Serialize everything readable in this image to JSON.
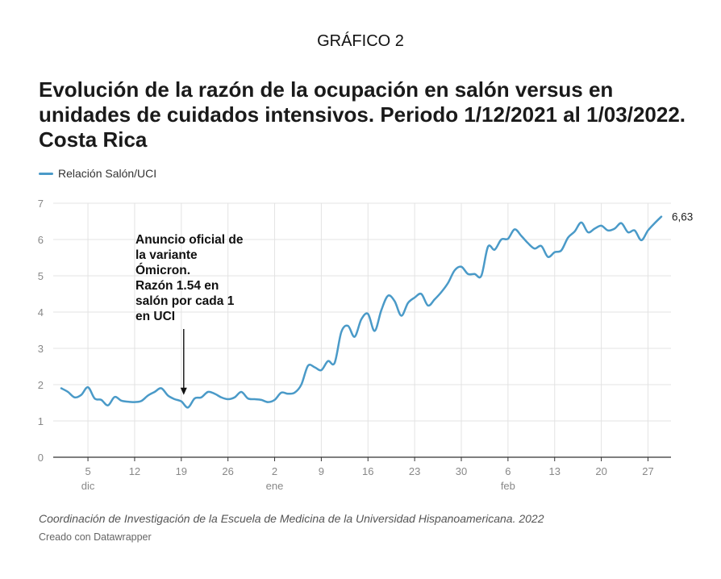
{
  "header": {
    "kicker": "GRÁFICO 2",
    "title": "Evolución de la razón de la ocupación en salón versus en unidades de cuidados intensivos. Periodo 1/12/2021 al 1/03/2022. Costa Rica"
  },
  "footer": {
    "source": "Coordinación de Investigación de la Escuela de Medicina de la Universidad Hispanoamericana. 2022",
    "credit": "Creado con Datawrapper"
  },
  "colors": {
    "line": "#4a9ac8",
    "grid": "#e3e3e3",
    "axis": "#333333",
    "text": "#888888"
  },
  "chart_data": {
    "type": "line",
    "title": "Evolución de la razón de la ocupación en salón versus en unidades de cuidados intensivos. Periodo 1/12/2021 al 1/03/2022. Costa Rica",
    "legend_position": "top-left",
    "grid": true,
    "ylim": [
      0,
      7
    ],
    "y_ticks": [
      0,
      1,
      2,
      3,
      4,
      5,
      6,
      7
    ],
    "xlim": [
      "2021-12-01",
      "2022-03-01"
    ],
    "x_ticks": [
      {
        "date": "2021-12-05",
        "label": "5",
        "month": "dic"
      },
      {
        "date": "2021-12-12",
        "label": "12",
        "month": ""
      },
      {
        "date": "2021-12-19",
        "label": "19",
        "month": ""
      },
      {
        "date": "2021-12-26",
        "label": "26",
        "month": ""
      },
      {
        "date": "2022-01-02",
        "label": "2",
        "month": "ene"
      },
      {
        "date": "2022-01-09",
        "label": "9",
        "month": ""
      },
      {
        "date": "2022-01-16",
        "label": "16",
        "month": ""
      },
      {
        "date": "2022-01-23",
        "label": "23",
        "month": ""
      },
      {
        "date": "2022-01-30",
        "label": "30",
        "month": ""
      },
      {
        "date": "2022-02-06",
        "label": "6",
        "month": "feb"
      },
      {
        "date": "2022-02-13",
        "label": "13",
        "month": ""
      },
      {
        "date": "2022-02-20",
        "label": "20",
        "month": ""
      },
      {
        "date": "2022-02-27",
        "label": "27",
        "month": ""
      }
    ],
    "series": [
      {
        "name": "Relación Salón/UCI",
        "end_label": "6,63",
        "points": [
          [
            "2021-12-01",
            1.9
          ],
          [
            "2021-12-02",
            1.8
          ],
          [
            "2021-12-03",
            1.65
          ],
          [
            "2021-12-04",
            1.72
          ],
          [
            "2021-12-05",
            1.93
          ],
          [
            "2021-12-06",
            1.62
          ],
          [
            "2021-12-07",
            1.58
          ],
          [
            "2021-12-08",
            1.43
          ],
          [
            "2021-12-09",
            1.66
          ],
          [
            "2021-12-10",
            1.56
          ],
          [
            "2021-12-11",
            1.53
          ],
          [
            "2021-12-12",
            1.52
          ],
          [
            "2021-12-13",
            1.55
          ],
          [
            "2021-12-14",
            1.7
          ],
          [
            "2021-12-15",
            1.8
          ],
          [
            "2021-12-16",
            1.9
          ],
          [
            "2021-12-17",
            1.7
          ],
          [
            "2021-12-18",
            1.6
          ],
          [
            "2021-12-19",
            1.54
          ],
          [
            "2021-12-20",
            1.37
          ],
          [
            "2021-12-21",
            1.62
          ],
          [
            "2021-12-22",
            1.65
          ],
          [
            "2021-12-23",
            1.8
          ],
          [
            "2021-12-24",
            1.75
          ],
          [
            "2021-12-25",
            1.65
          ],
          [
            "2021-12-26",
            1.6
          ],
          [
            "2021-12-27",
            1.65
          ],
          [
            "2021-12-28",
            1.8
          ],
          [
            "2021-12-29",
            1.62
          ],
          [
            "2021-12-30",
            1.6
          ],
          [
            "2021-12-31",
            1.58
          ],
          [
            "2022-01-01",
            1.52
          ],
          [
            "2022-01-02",
            1.58
          ],
          [
            "2022-01-03",
            1.78
          ],
          [
            "2022-01-04",
            1.75
          ],
          [
            "2022-01-05",
            1.78
          ],
          [
            "2022-01-06",
            2.0
          ],
          [
            "2022-01-07",
            2.52
          ],
          [
            "2022-01-08",
            2.48
          ],
          [
            "2022-01-09",
            2.4
          ],
          [
            "2022-01-10",
            2.65
          ],
          [
            "2022-01-11",
            2.6
          ],
          [
            "2022-01-12",
            3.45
          ],
          [
            "2022-01-13",
            3.62
          ],
          [
            "2022-01-14",
            3.32
          ],
          [
            "2022-01-15",
            3.8
          ],
          [
            "2022-01-16",
            3.95
          ],
          [
            "2022-01-17",
            3.48
          ],
          [
            "2022-01-18",
            4.05
          ],
          [
            "2022-01-19",
            4.45
          ],
          [
            "2022-01-20",
            4.3
          ],
          [
            "2022-01-21",
            3.9
          ],
          [
            "2022-01-22",
            4.25
          ],
          [
            "2022-01-23",
            4.4
          ],
          [
            "2022-01-24",
            4.5
          ],
          [
            "2022-01-25",
            4.18
          ],
          [
            "2022-01-26",
            4.35
          ],
          [
            "2022-01-27",
            4.55
          ],
          [
            "2022-01-28",
            4.8
          ],
          [
            "2022-01-29",
            5.15
          ],
          [
            "2022-01-30",
            5.25
          ],
          [
            "2022-01-31",
            5.05
          ],
          [
            "2022-02-01",
            5.05
          ],
          [
            "2022-02-02",
            5.0
          ],
          [
            "2022-02-03",
            5.8
          ],
          [
            "2022-02-04",
            5.72
          ],
          [
            "2022-02-05",
            6.0
          ],
          [
            "2022-02-06",
            6.02
          ],
          [
            "2022-02-07",
            6.28
          ],
          [
            "2022-02-08",
            6.1
          ],
          [
            "2022-02-09",
            5.9
          ],
          [
            "2022-02-10",
            5.75
          ],
          [
            "2022-02-11",
            5.82
          ],
          [
            "2022-02-12",
            5.52
          ],
          [
            "2022-02-13",
            5.65
          ],
          [
            "2022-02-14",
            5.7
          ],
          [
            "2022-02-15",
            6.05
          ],
          [
            "2022-02-16",
            6.22
          ],
          [
            "2022-02-17",
            6.47
          ],
          [
            "2022-02-18",
            6.2
          ],
          [
            "2022-02-19",
            6.3
          ],
          [
            "2022-02-20",
            6.38
          ],
          [
            "2022-02-21",
            6.25
          ],
          [
            "2022-02-22",
            6.3
          ],
          [
            "2022-02-23",
            6.45
          ],
          [
            "2022-02-24",
            6.2
          ],
          [
            "2022-02-25",
            6.25
          ],
          [
            "2022-02-26",
            5.98
          ],
          [
            "2022-02-27",
            6.25
          ],
          [
            "2022-02-28",
            6.45
          ],
          [
            "2022-03-01",
            6.63
          ]
        ]
      }
    ],
    "annotations": [
      {
        "lines": [
          "Anuncio oficial de",
          "la variante",
          "Ómicron.",
          "Razón 1.54 en",
          "salón por cada 1",
          "en UCI"
        ],
        "target": [
          "2021-12-19",
          1.54
        ]
      }
    ]
  }
}
